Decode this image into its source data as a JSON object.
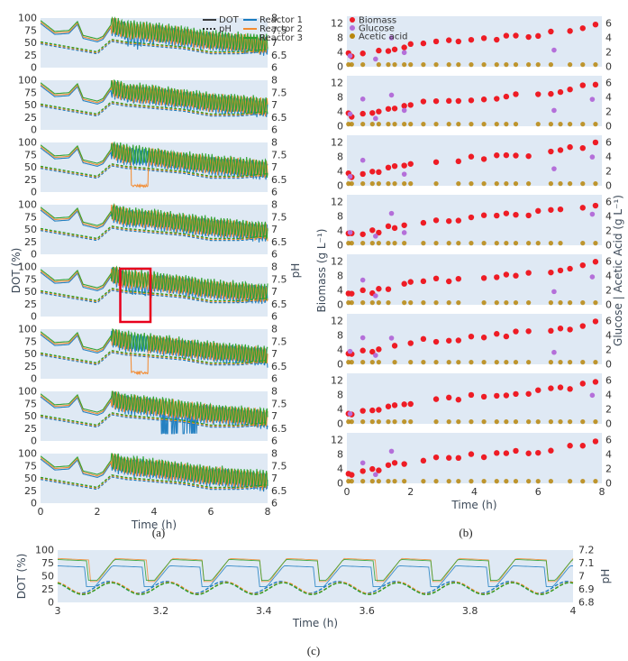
{
  "figure": {
    "captions": [
      "(a)",
      "(b)",
      "(c)"
    ]
  },
  "colors": {
    "reactor1": "#1a7bbf",
    "reactor2": "#f28b30",
    "reactor3": "#2ca02c",
    "biomass": "#ee1c25",
    "glucose": "#b46fd9",
    "acetic_acid": "#b8860b",
    "panel_bg": "#dfe9f4",
    "highlight_box": "#e8001c"
  },
  "chart_data": [
    {
      "id": "a",
      "type": "line",
      "title": "",
      "xlabel": "Time (h)",
      "ylabel": "DOT (%)",
      "y2label": "pH",
      "x_ticks": [
        "0",
        "2",
        "4",
        "6",
        "8"
      ],
      "ylim": [
        0,
        100
      ],
      "y_ticks": [
        "0",
        "25",
        "50",
        "75",
        "100"
      ],
      "y2lim": [
        6,
        8
      ],
      "y2_ticks": [
        "6",
        "6.5",
        "7",
        "7.5",
        "8"
      ],
      "xlim": [
        0,
        8
      ],
      "legend": {
        "position": "top-right of first subplot",
        "line_styles": [
          {
            "label": "DOT",
            "style": "solid"
          },
          {
            "label": "pH",
            "style": "dotted"
          }
        ],
        "series": [
          "Reactor 1",
          "Reactor 2",
          "Reactor 3"
        ]
      },
      "subplots": 8,
      "highlight": {
        "x_range": [
          3,
          4
        ],
        "subplot": 5
      },
      "dot_profile": {
        "time": [
          0,
          0.5,
          1.0,
          1.3,
          1.5,
          2.0,
          2.2,
          2.5,
          3.0,
          4.0,
          5.0,
          6.0,
          7.0,
          8.0
        ],
        "mean_dot": [
          92,
          70,
          72,
          90,
          62,
          55,
          60,
          85,
          75,
          70,
          62,
          55,
          50,
          45
        ],
        "oscillation_start_h": 2.5,
        "oscillation_amplitude": 20
      },
      "ph_profile": {
        "time": [
          0,
          1,
          2,
          2.5,
          3,
          4,
          5,
          6,
          7,
          8
        ],
        "values": [
          7.0,
          6.8,
          6.6,
          7.1,
          7.0,
          6.9,
          6.8,
          6.6,
          6.6,
          6.7
        ]
      }
    },
    {
      "id": "b",
      "type": "scatter",
      "title": "",
      "xlabel": "Time (h)",
      "ylabel": "Biomass (g L⁻¹)",
      "y2label": "Glucose | Acetic Acid (g L⁻¹)",
      "x_ticks": [
        "0",
        "2",
        "4",
        "6",
        "8"
      ],
      "xlim": [
        0,
        8
      ],
      "ylim": [
        0,
        14
      ],
      "y_ticks": [
        "0",
        "4",
        "8",
        "12"
      ],
      "y2lim": [
        0,
        7
      ],
      "y2_ticks": [
        "0",
        "2",
        "4",
        "6"
      ],
      "legend": {
        "position": "top-left of first subplot",
        "entries": [
          "Biomass",
          "Glucose",
          "Acetic acid"
        ]
      },
      "subplots": 8,
      "time": [
        0.05,
        0.15,
        0.5,
        0.8,
        1.0,
        1.3,
        1.5,
        1.8,
        2.0,
        2.4,
        2.8,
        3.2,
        3.5,
        3.9,
        4.3,
        4.7,
        5.0,
        5.3,
        5.7,
        6.0,
        6.4,
        6.7,
        7.0,
        7.4,
        7.8
      ],
      "biomass": [
        3.2,
        2.8,
        3.5,
        3.8,
        4.0,
        4.8,
        5.2,
        5.6,
        6.0,
        6.5,
        6.8,
        7.0,
        7.2,
        7.6,
        7.8,
        8.0,
        8.3,
        8.6,
        8.8,
        9.0,
        9.3,
        9.8,
        10.2,
        10.8,
        11.5
      ],
      "glucose_time": [
        0.1,
        0.5,
        0.9,
        1.4,
        1.8,
        6.5,
        7.7
      ],
      "glucose": [
        1.5,
        3.5,
        1.2,
        4.0,
        2.0,
        2.0,
        3.8
      ],
      "acetic_acid_level": 0.3
    },
    {
      "id": "c",
      "type": "line",
      "title": "",
      "xlabel": "Time (h)",
      "ylabel": "DOT (%)",
      "y2label": "pH",
      "x_ticks": [
        "3",
        "3.2",
        "3.4",
        "3.6",
        "3.8",
        "4"
      ],
      "xlim": [
        3,
        4
      ],
      "ylim": [
        0,
        100
      ],
      "y_ticks": [
        "0",
        "25",
        "50",
        "75",
        "100"
      ],
      "y2lim": [
        6.8,
        7.2
      ],
      "y2_ticks": [
        "6.8",
        "6.9",
        "7",
        "7.1",
        "7.2"
      ],
      "cycles": 9,
      "dot_reactor2_3": {
        "high": 84,
        "low": 40
      },
      "dot_reactor1": {
        "high": 70,
        "low": 30
      },
      "ph_cycle": {
        "high": 6.96,
        "low": 6.87
      }
    }
  ]
}
